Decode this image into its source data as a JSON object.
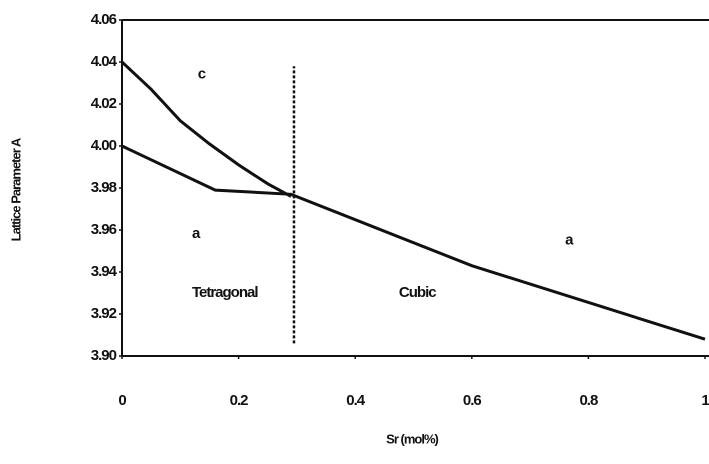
{
  "chart_data": {
    "type": "line",
    "xlabel": "Sr (mol%)",
    "ylabel": "Lattice Parameter A",
    "xlim": [
      0,
      1
    ],
    "ylim": [
      3.9,
      4.06
    ],
    "xticks": [
      0,
      0.2,
      0.4,
      0.6,
      0.8,
      1
    ],
    "yticks": [
      4.06,
      4.04,
      4.02,
      {
        "value": 4,
        "label": "4.00"
      },
      3.98,
      3.96,
      3.94,
      3.92,
      {
        "value": 3.9,
        "label": "3.90"
      }
    ],
    "series": [
      {
        "name": "c",
        "color": "#111111",
        "x": [
          0,
          0.05,
          0.1,
          0.15,
          0.2,
          0.25,
          0.29
        ],
        "values": [
          4.04,
          4.027,
          4.012,
          4.001,
          3.991,
          3.982,
          3.976
        ]
      },
      {
        "name": "a",
        "color": "#111111",
        "x": [
          0,
          0.16,
          0.29,
          0.6,
          1
        ],
        "values": [
          4.0,
          3.979,
          3.977,
          3.943,
          3.908
        ]
      }
    ],
    "annotations": [
      {
        "text": "c",
        "x": 0.13,
        "y": 4.034
      },
      {
        "text": "a",
        "x": 0.12,
        "y": 3.958
      },
      {
        "text": "a",
        "x": 0.76,
        "y": 3.955
      },
      {
        "text": "Tetragonal",
        "x": 0.12,
        "y": 3.93
      },
      {
        "text": "Cubic",
        "x": 0.475,
        "y": 3.93
      }
    ],
    "vlines": [
      {
        "x": 0.295,
        "ymin": 3.906,
        "ymax": 4.038
      }
    ]
  }
}
